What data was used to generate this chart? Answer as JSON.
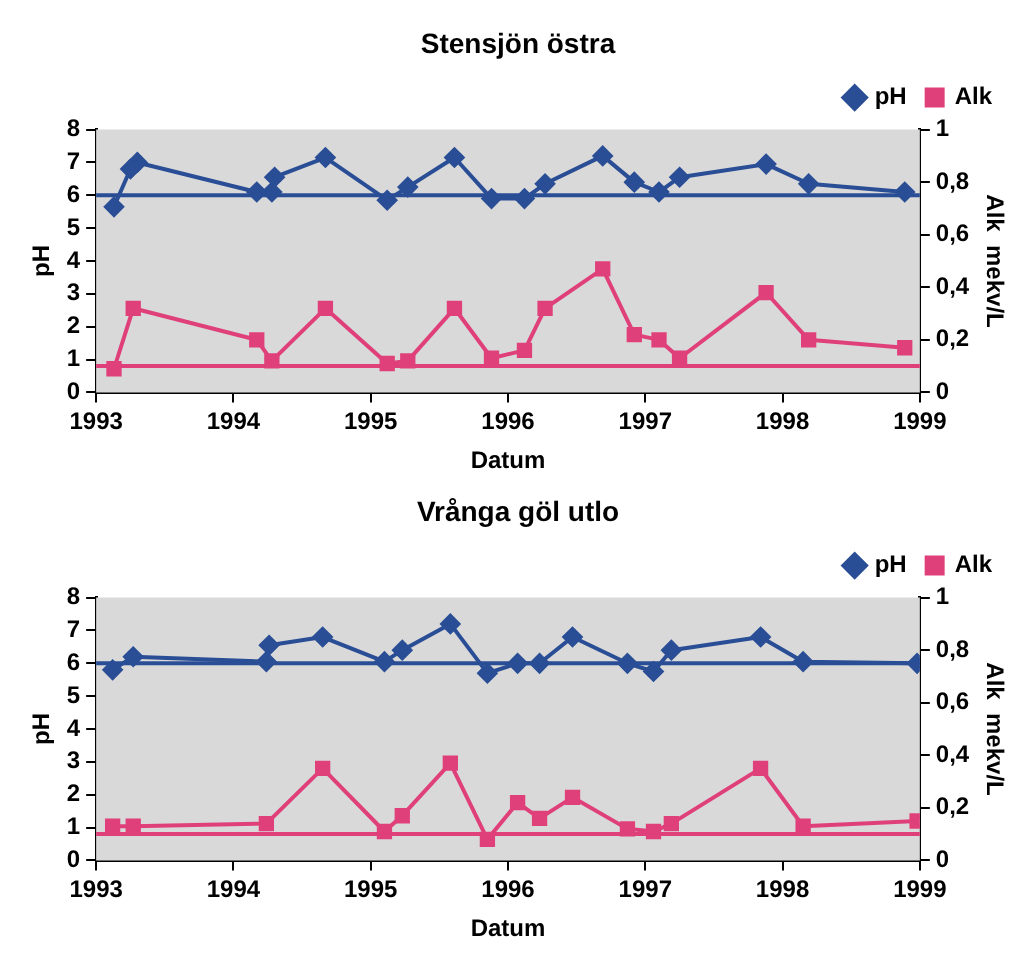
{
  "chart_data": [
    {
      "type": "line",
      "title": "Stensjön östra",
      "xlabel": "Datum",
      "ylabel": "pH",
      "y2label": "Alk  mekv/L",
      "xlim": [
        1993,
        1999
      ],
      "xticks": [
        1993,
        1994,
        1995,
        1996,
        1997,
        1998,
        1999
      ],
      "ylim": [
        0,
        8
      ],
      "yticks": [
        0,
        1,
        2,
        3,
        4,
        5,
        6,
        7,
        8
      ],
      "y2lim": [
        0,
        1
      ],
      "y2ticks": [
        {
          "value": 0,
          "label": "0"
        },
        {
          "value": 0.2,
          "label": "0,2"
        },
        {
          "value": 0.4,
          "label": "0,4"
        },
        {
          "value": 0.6,
          "label": "0,6"
        },
        {
          "value": 0.8,
          "label": "0,8"
        },
        {
          "value": 1,
          "label": "1"
        }
      ],
      "legend": "top right",
      "grid": false,
      "series": [
        {
          "name": "pH",
          "color": "#2a4e96",
          "marker": "diamond",
          "x": [
            1993.13,
            1993.25,
            1993.3,
            1994.17,
            1994.28,
            1994.3,
            1994.67,
            1995.12,
            1995.27,
            1995.61,
            1995.88,
            1996.12,
            1996.27,
            1996.69,
            1996.92,
            1997.1,
            1997.25,
            1997.88,
            1998.19,
            1998.89
          ],
          "values": [
            5.65,
            6.8,
            7.0,
            6.1,
            6.1,
            6.55,
            7.15,
            5.85,
            6.25,
            7.15,
            5.9,
            5.9,
            6.35,
            7.2,
            6.4,
            6.1,
            6.55,
            6.95,
            6.35,
            6.1
          ]
        },
        {
          "name": "Alk",
          "color": "#e0407a",
          "marker": "square",
          "axis": "y2",
          "x": [
            1993.13,
            1993.27,
            1994.17,
            1994.28,
            1994.67,
            1995.12,
            1995.27,
            1995.61,
            1995.88,
            1996.12,
            1996.27,
            1996.69,
            1996.92,
            1997.1,
            1997.25,
            1997.88,
            1998.19,
            1998.89
          ],
          "values": [
            0.09,
            0.32,
            0.2,
            0.12,
            0.32,
            0.11,
            0.12,
            0.32,
            0.13,
            0.16,
            0.32,
            0.47,
            0.22,
            0.2,
            0.13,
            0.38,
            0.2,
            0.17
          ]
        }
      ],
      "ref_lines": [
        {
          "axis": "y",
          "value": 6,
          "color": "#2a4e96"
        },
        {
          "axis": "y2",
          "value": 0.1,
          "color": "#e0407a"
        }
      ]
    },
    {
      "type": "line",
      "title": "Vrånga göl utlo",
      "xlabel": "Datum",
      "ylabel": "pH",
      "y2label": "Alk  mekv/L",
      "xlim": [
        1993,
        1999
      ],
      "xticks": [
        1993,
        1994,
        1995,
        1996,
        1997,
        1998,
        1999
      ],
      "ylim": [
        0,
        8
      ],
      "yticks": [
        0,
        1,
        2,
        3,
        4,
        5,
        6,
        7,
        8
      ],
      "y2lim": [
        0,
        1
      ],
      "y2ticks": [
        {
          "value": 0,
          "label": "0"
        },
        {
          "value": 0.2,
          "label": "0,2"
        },
        {
          "value": 0.4,
          "label": "0,4"
        },
        {
          "value": 0.6,
          "label": "0,6"
        },
        {
          "value": 0.8,
          "label": "0,8"
        },
        {
          "value": 1,
          "label": "1"
        }
      ],
      "legend": "top right",
      "grid": false,
      "series": [
        {
          "name": "pH",
          "color": "#2a4e96",
          "marker": "diamond",
          "x": [
            1993.12,
            1993.27,
            1994.24,
            1994.26,
            1994.65,
            1995.1,
            1995.23,
            1995.58,
            1995.85,
            1996.07,
            1996.23,
            1996.47,
            1996.87,
            1997.06,
            1997.19,
            1997.84,
            1998.15,
            1998.98
          ],
          "values": [
            5.8,
            6.2,
            6.05,
            6.55,
            6.8,
            6.05,
            6.4,
            7.2,
            5.7,
            6.0,
            6.0,
            6.8,
            6.0,
            5.75,
            6.4,
            6.8,
            6.05,
            6.0
          ]
        },
        {
          "name": "Alk",
          "color": "#e0407a",
          "marker": "square",
          "axis": "y2",
          "x": [
            1993.12,
            1993.27,
            1994.24,
            1994.65,
            1995.1,
            1995.23,
            1995.58,
            1995.85,
            1996.07,
            1996.23,
            1996.47,
            1996.87,
            1997.06,
            1997.19,
            1997.84,
            1998.15,
            1998.98
          ],
          "values": [
            0.13,
            0.13,
            0.14,
            0.35,
            0.11,
            0.17,
            0.37,
            0.08,
            0.22,
            0.16,
            0.24,
            0.12,
            0.11,
            0.14,
            0.35,
            0.13,
            0.15
          ]
        }
      ],
      "ref_lines": [
        {
          "axis": "y",
          "value": 6,
          "color": "#2a4e96"
        },
        {
          "axis": "y2",
          "value": 0.1,
          "color": "#e0407a"
        }
      ]
    }
  ]
}
